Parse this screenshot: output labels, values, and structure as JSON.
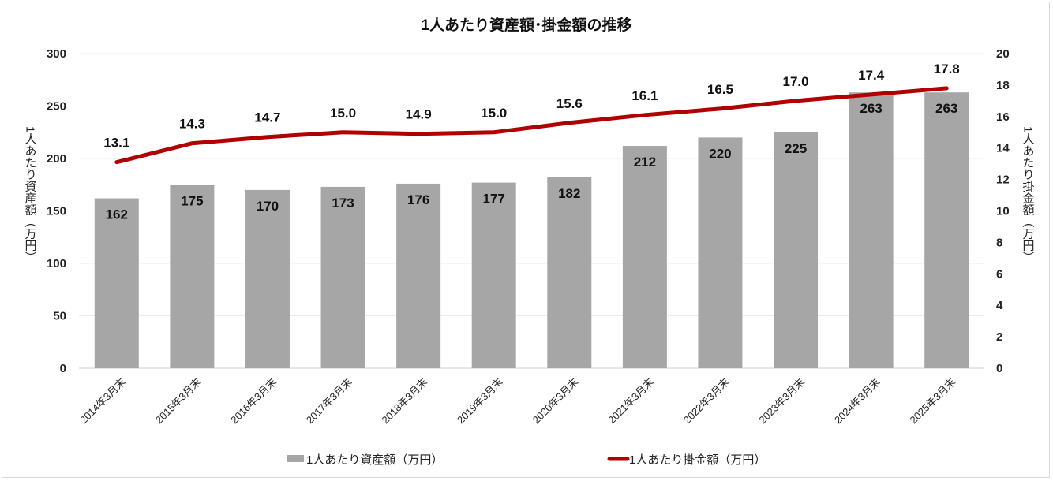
{
  "chart_data": {
    "type": "bar+line",
    "title": "1人あたり資産額･掛金額の推移",
    "categories": [
      "2014年3月末",
      "2015年3月末",
      "2016年3月末",
      "2017年3月末",
      "2018年3月末",
      "2019年3月末",
      "2020年3月末",
      "2021年3月末",
      "2022年3月末",
      "2023年3月末",
      "2024年3月末",
      "2025年3月末"
    ],
    "series": [
      {
        "name": "1人あたり資産額（万円）",
        "type": "bar",
        "axis": "left",
        "color": "#a6a6a6",
        "values": [
          162,
          175,
          170,
          173,
          176,
          177,
          182,
          212,
          220,
          225,
          263,
          263
        ]
      },
      {
        "name": "1人あたり掛金額（万円）",
        "type": "line",
        "axis": "right",
        "color": "#b00000",
        "values": [
          13.1,
          14.3,
          14.7,
          15.0,
          14.9,
          15.0,
          15.6,
          16.1,
          16.5,
          17.0,
          17.4,
          17.8
        ]
      }
    ],
    "ylabel": "1人あたり資産額（万円）",
    "y2label": "1人あたり掛金額（万円）",
    "ylim": [
      0,
      300
    ],
    "y2lim": [
      0,
      20
    ],
    "yticks": [
      "0",
      "50",
      "100",
      "150",
      "200",
      "250",
      "300"
    ],
    "y2ticks": [
      "0",
      "2",
      "4",
      "6",
      "8",
      "10",
      "12",
      "14",
      "16",
      "18",
      "20"
    ],
    "legend_position": "bottom",
    "grid": true
  }
}
